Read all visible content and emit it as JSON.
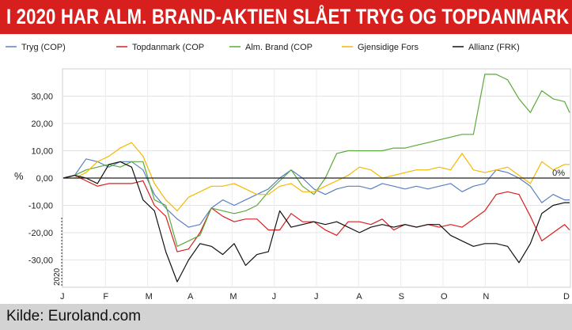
{
  "header": {
    "title": "I 2020 HAR ALM. BRAND-AKTIEN SLÅET TRYG OG TOPDANMARK"
  },
  "footer": {
    "source": "Kilde: Euroland.com"
  },
  "chart_data": {
    "type": "line",
    "title": "I 2020 HAR ALM. BRAND-AKTIEN SLÅET TRYG OG TOPDANMARK",
    "ylabel": "%",
    "xlabel": "",
    "year_label": "2020",
    "reference_label": "0%",
    "ylim": [
      -40,
      40
    ],
    "yticks": [
      -30,
      -20,
      -10,
      0,
      10,
      20,
      30
    ],
    "ytick_labels": [
      "-30,00",
      "-20,00",
      "-10,00",
      "0,00",
      "10,00",
      "20,00",
      "30,00"
    ],
    "x_months": [
      "J",
      "F",
      "M",
      "A",
      "M",
      "J",
      "J",
      "A",
      "S",
      "O",
      "N",
      "D"
    ],
    "grid": true,
    "legend_position": "top",
    "x": [
      0,
      0.27,
      0.54,
      0.81,
      1.08,
      1.35,
      1.62,
      1.89,
      2.16,
      2.43,
      2.7,
      2.97,
      3.24,
      3.51,
      3.78,
      4.05,
      4.32,
      4.59,
      4.86,
      5.13,
      5.4,
      5.67,
      5.94,
      6.21,
      6.48,
      6.75,
      7.02,
      7.29,
      7.56,
      7.83,
      8.1,
      8.37,
      8.64,
      8.91,
      9.18,
      9.45,
      9.72,
      9.99,
      10.26,
      10.53,
      10.8,
      11.07,
      11.34,
      11.61,
      11.88,
      12.0
    ],
    "series": [
      {
        "name": "Tryg (COP)",
        "color": "#5b7fc2",
        "values": [
          0,
          1,
          7,
          6,
          4,
          6,
          6,
          3,
          -6,
          -11,
          -15,
          -18,
          -17,
          -11,
          -8,
          -10,
          -8,
          -6,
          -4,
          0,
          3,
          0,
          -4,
          -6,
          -4,
          -3,
          -3,
          -4,
          -2,
          -3,
          -4,
          -3,
          -4,
          -3,
          -2,
          -5,
          -3,
          -2,
          3,
          2,
          0,
          -3,
          -9,
          -6,
          -8,
          -8
        ]
      },
      {
        "name": "Topdanmark (COP",
        "color": "#d62020",
        "values": [
          0,
          1,
          -1,
          -3,
          -2,
          -2,
          -2,
          -1,
          -10,
          -14,
          -27,
          -26,
          -20,
          -11,
          -14,
          -16,
          -15,
          -15,
          -19,
          -19,
          -13,
          -16,
          -16,
          -19,
          -21,
          -16,
          -16,
          -17,
          -15,
          -19,
          -17,
          -18,
          -17,
          -18,
          -17,
          -18,
          -15,
          -12,
          -6,
          -5,
          -6,
          -14,
          -23,
          -20,
          -17,
          -19
        ]
      },
      {
        "name": "Alm. Brand (COP",
        "color": "#5aaa3a",
        "values": [
          0,
          1,
          3,
          4,
          5,
          4,
          6,
          6,
          -8,
          -10,
          -25,
          -23,
          -21,
          -11,
          -12,
          -13,
          -12,
          -10,
          -5,
          -1,
          3,
          -3,
          -6,
          0,
          9,
          10,
          10,
          10,
          10,
          11,
          11,
          12,
          13,
          14,
          15,
          16,
          16,
          38,
          38,
          36,
          29,
          24,
          32,
          29,
          28,
          24
        ]
      },
      {
        "name": "Gjensidige Fors",
        "color": "#f5b800",
        "values": [
          0,
          0,
          2,
          6,
          8,
          11,
          13,
          8,
          -2,
          -8,
          -12,
          -7,
          -5,
          -3,
          -3,
          -2,
          -4,
          -6,
          -6,
          -3,
          -2,
          -5,
          -5,
          -3,
          -1,
          1,
          4,
          3,
          0,
          1,
          2,
          3,
          3,
          4,
          3,
          9,
          3,
          2,
          3,
          4,
          1,
          -2,
          6,
          3,
          5,
          5
        ]
      },
      {
        "name": "Allianz (FRK)",
        "color": "#111111",
        "values": [
          0,
          1,
          0,
          -2,
          5,
          6,
          4,
          -8,
          -12,
          -27,
          -38,
          -30,
          -24,
          -25,
          -28,
          -24,
          -32,
          -28,
          -27,
          -12,
          -18,
          -17,
          -16,
          -17,
          -16,
          -18,
          -20,
          -18,
          -17,
          -18,
          -17,
          -18,
          -17,
          -17,
          -21,
          -23,
          -25,
          -24,
          -24,
          -25,
          -31,
          -24,
          -13,
          -10,
          -9,
          -9
        ]
      }
    ]
  }
}
